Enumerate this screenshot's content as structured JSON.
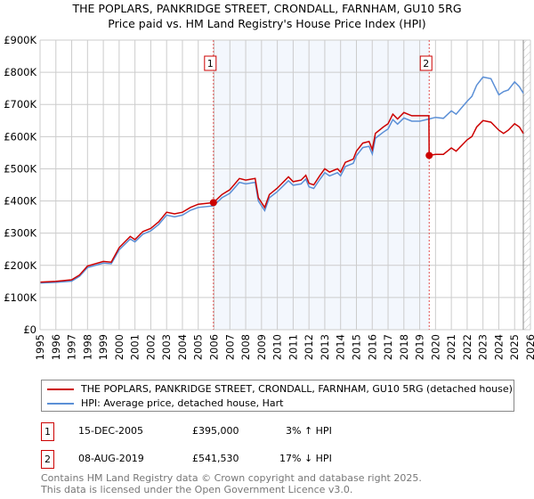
{
  "title_line1": "THE POPLARS, PANKRIDGE STREET, CRONDALL, FARNHAM, GU10 5RG",
  "title_line2": "Price paid vs. HM Land Registry's House Price Index (HPI)",
  "chart_data": {
    "type": "line",
    "title": "THE POPLARS, PANKRIDGE STREET, CRONDALL, FARNHAM, GU10 5RG — Price paid vs. HM Land Registry's House Price Index (HPI)",
    "xlim": [
      1995,
      2026
    ],
    "ylim": [
      0,
      900000
    ],
    "x_ticks": [
      "1995",
      "1996",
      "1997",
      "1998",
      "1999",
      "2000",
      "2001",
      "2002",
      "2003",
      "2004",
      "2005",
      "2006",
      "2007",
      "2008",
      "2009",
      "2010",
      "2011",
      "2012",
      "2013",
      "2014",
      "2015",
      "2016",
      "2017",
      "2018",
      "2019",
      "2020",
      "2021",
      "2022",
      "2023",
      "2024",
      "2025",
      "2026"
    ],
    "y_ticks": [
      {
        "v": 0,
        "label": "£0"
      },
      {
        "v": 100000,
        "label": "£100K"
      },
      {
        "v": 200000,
        "label": "£200K"
      },
      {
        "v": 300000,
        "label": "£300K"
      },
      {
        "v": 400000,
        "label": "£400K"
      },
      {
        "v": 500000,
        "label": "£500K"
      },
      {
        "v": 600000,
        "label": "£600K"
      },
      {
        "v": 700000,
        "label": "£700K"
      },
      {
        "v": 800000,
        "label": "£800K"
      },
      {
        "v": 900000,
        "label": "£900K"
      }
    ],
    "grid": true,
    "shaded_range": [
      2005.96,
      2019.6
    ],
    "hatched_from": 2025.55,
    "series": [
      {
        "name": "THE POPLARS, PANKRIDGE STREET, CRONDALL, FARNHAM, GU10 5RG (detached house)",
        "color": "#cc0000",
        "x": [
          1995,
          1996,
          1997,
          1997.5,
          1998,
          1999,
          1999.5,
          2000,
          2000.7,
          2001,
          2001.5,
          2002,
          2002.5,
          2003,
          2003.5,
          2004,
          2004.5,
          2005,
          2005.96,
          2006.5,
          2007,
          2007.6,
          2008,
          2008.6,
          2008.8,
          2009.2,
          2009.5,
          2010,
          2010.7,
          2011,
          2011.5,
          2011.8,
          2012,
          2012.3,
          2012.7,
          2013,
          2013.3,
          2013.8,
          2014,
          2014.3,
          2014.8,
          2015,
          2015.4,
          2015.8,
          2016,
          2016.2,
          2016.7,
          2017,
          2017.3,
          2017.6,
          2018,
          2018.5,
          2019,
          2019.58,
          2019.6,
          2020,
          2020.5,
          2021,
          2021.3,
          2022,
          2022.3,
          2022.6,
          2023,
          2023.5,
          2024,
          2024.3,
          2024.6,
          2025,
          2025.3,
          2025.55
        ],
        "y": [
          148000,
          150000,
          155000,
          170000,
          198000,
          212000,
          210000,
          255000,
          290000,
          280000,
          305000,
          315000,
          335000,
          365000,
          360000,
          365000,
          380000,
          390000,
          395000,
          420000,
          435000,
          470000,
          465000,
          470000,
          410000,
          380000,
          420000,
          440000,
          475000,
          460000,
          465000,
          480000,
          455000,
          450000,
          480000,
          500000,
          490000,
          500000,
          490000,
          520000,
          530000,
          555000,
          580000,
          585000,
          560000,
          610000,
          630000,
          640000,
          670000,
          655000,
          675000,
          665000,
          665000,
          665000,
          541530,
          545000,
          545000,
          565000,
          555000,
          590000,
          600000,
          630000,
          650000,
          645000,
          620000,
          610000,
          620000,
          640000,
          630000,
          610000
        ]
      },
      {
        "name": "HPI: Average price, detached house, Hart",
        "color": "#5b8fd6",
        "x": [
          1995,
          1996,
          1997,
          1997.5,
          1998,
          1999,
          1999.5,
          2000,
          2000.7,
          2001,
          2001.5,
          2002,
          2002.5,
          2003,
          2003.5,
          2004,
          2004.5,
          2005,
          2005.96,
          2006.5,
          2007,
          2007.6,
          2008,
          2008.6,
          2008.8,
          2009.2,
          2009.5,
          2010,
          2010.7,
          2011,
          2011.5,
          2011.8,
          2012,
          2012.3,
          2012.7,
          2013,
          2013.3,
          2013.8,
          2014,
          2014.3,
          2014.8,
          2015,
          2015.4,
          2015.8,
          2016,
          2016.2,
          2016.7,
          2017,
          2017.3,
          2017.6,
          2018,
          2018.5,
          2019,
          2019.6,
          2020,
          2020.5,
          2021,
          2021.3,
          2022,
          2022.3,
          2022.6,
          2023,
          2023.5,
          2024,
          2024.3,
          2024.6,
          2025,
          2025.3,
          2025.55
        ],
        "y": [
          145000,
          147000,
          151000,
          166000,
          193000,
          207000,
          205000,
          248000,
          282000,
          273000,
          297000,
          307000,
          327000,
          356000,
          351000,
          356000,
          371000,
          380000,
          385000,
          410000,
          424000,
          458000,
          453000,
          458000,
          400000,
          370000,
          410000,
          429000,
          463000,
          449000,
          453000,
          468000,
          444000,
          439000,
          468000,
          488000,
          478000,
          488000,
          478000,
          507000,
          517000,
          541000,
          566000,
          570000,
          546000,
          595000,
          614000,
          624000,
          653000,
          639000,
          658000,
          648000,
          648000,
          655000,
          660000,
          657000,
          680000,
          670000,
          710000,
          725000,
          760000,
          785000,
          780000,
          730000,
          740000,
          745000,
          770000,
          755000,
          735000
        ]
      }
    ],
    "annotations": [
      {
        "label": "1",
        "x": 2005.96,
        "y": 395000
      },
      {
        "label": "2",
        "x": 2019.6,
        "y": 541530
      }
    ]
  },
  "legend": {
    "items": [
      {
        "label": "THE POPLARS, PANKRIDGE STREET, CRONDALL, FARNHAM, GU10 5RG (detached house)",
        "color": "#cc0000"
      },
      {
        "label": "HPI: Average price, detached house, Hart",
        "color": "#5b8fd6"
      }
    ]
  },
  "transactions": [
    {
      "num": "1",
      "date": "15-DEC-2005",
      "price": "£395,000",
      "hpi": "3% ↑ HPI"
    },
    {
      "num": "2",
      "date": "08-AUG-2019",
      "price": "£541,530",
      "hpi": "17% ↓ HPI"
    }
  ],
  "footer": {
    "line1": "Contains HM Land Registry data © Crown copyright and database right 2025.",
    "line2": "This data is licensed under the Open Government Licence v3.0."
  }
}
